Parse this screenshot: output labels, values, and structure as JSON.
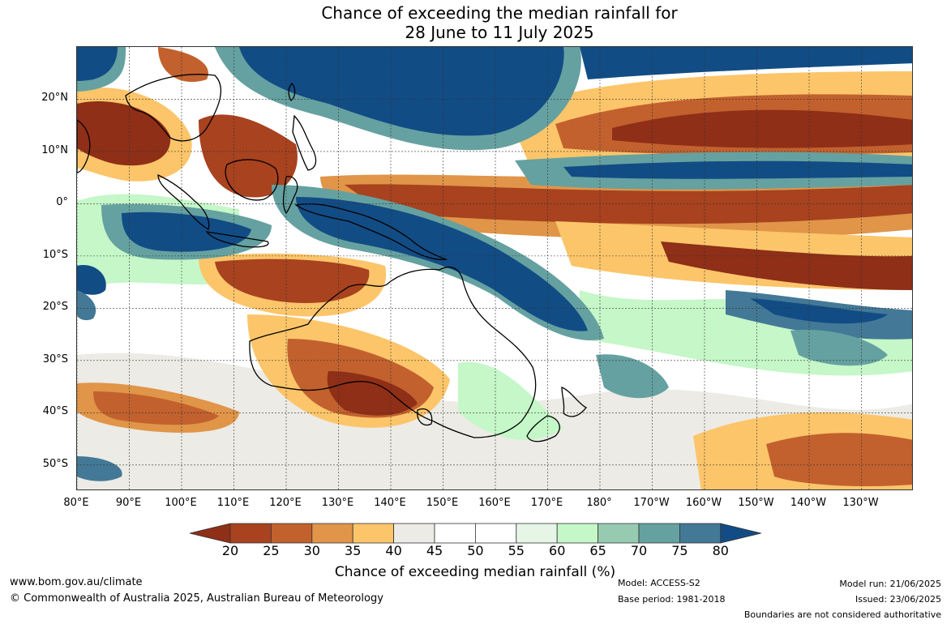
{
  "title": {
    "line1": "Chance of exceeding the median rainfall for",
    "line2": "28 June to 11 July 2025"
  },
  "map": {
    "lon_range": [
      80,
      240
    ],
    "lat_range": [
      -55,
      30
    ],
    "lat_ticks": [
      {
        "value": 20,
        "label": "20°N"
      },
      {
        "value": 10,
        "label": "10°N"
      },
      {
        "value": 0,
        "label": "0°"
      },
      {
        "value": -10,
        "label": "10°S"
      },
      {
        "value": -20,
        "label": "20°S"
      },
      {
        "value": -30,
        "label": "30°S"
      },
      {
        "value": -40,
        "label": "40°S"
      },
      {
        "value": -50,
        "label": "50°S"
      }
    ],
    "lon_ticks": [
      {
        "value": 80,
        "label": "80°E"
      },
      {
        "value": 90,
        "label": "90°E"
      },
      {
        "value": 100,
        "label": "100°E"
      },
      {
        "value": 110,
        "label": "110°E"
      },
      {
        "value": 120,
        "label": "120°E"
      },
      {
        "value": 130,
        "label": "130°E"
      },
      {
        "value": 140,
        "label": "140°E"
      },
      {
        "value": 150,
        "label": "150°E"
      },
      {
        "value": 160,
        "label": "160°E"
      },
      {
        "value": 170,
        "label": "170°E"
      },
      {
        "value": 180,
        "label": "180°"
      },
      {
        "value": 190,
        "label": "170°W"
      },
      {
        "value": 200,
        "label": "160°W"
      },
      {
        "value": 210,
        "label": "150°W"
      },
      {
        "value": 220,
        "label": "140°W"
      },
      {
        "value": 230,
        "label": "130°W"
      }
    ]
  },
  "colorbar": {
    "label": "Chance of exceeding median rainfall (%)",
    "ticks": [
      "20",
      "25",
      "30",
      "35",
      "40",
      "45",
      "50",
      "55",
      "60",
      "65",
      "70",
      "75",
      "80"
    ],
    "colors": [
      "#8f2f17",
      "#a8421f",
      "#c2612e",
      "#e09548",
      "#fcc56a",
      "#ecebe6",
      "#ffffff",
      "#ffffff",
      "#e6f5e6",
      "#c5f7c8",
      "#96cbb1",
      "#65a1a0",
      "#437996",
      "#124c85"
    ]
  },
  "footer": {
    "website": "www.bom.gov.au/climate",
    "copyright": "© Commonwealth of Australia 2025, Australian Bureau of Meteorology",
    "model": "Model: ACCESS-S2",
    "base_period": "Base period: 1981-2018",
    "model_run": "Model run: 21/06/2025",
    "issued": "Issued: 23/06/2025",
    "disclaimer": "Boundaries are not considered authoritative"
  }
}
